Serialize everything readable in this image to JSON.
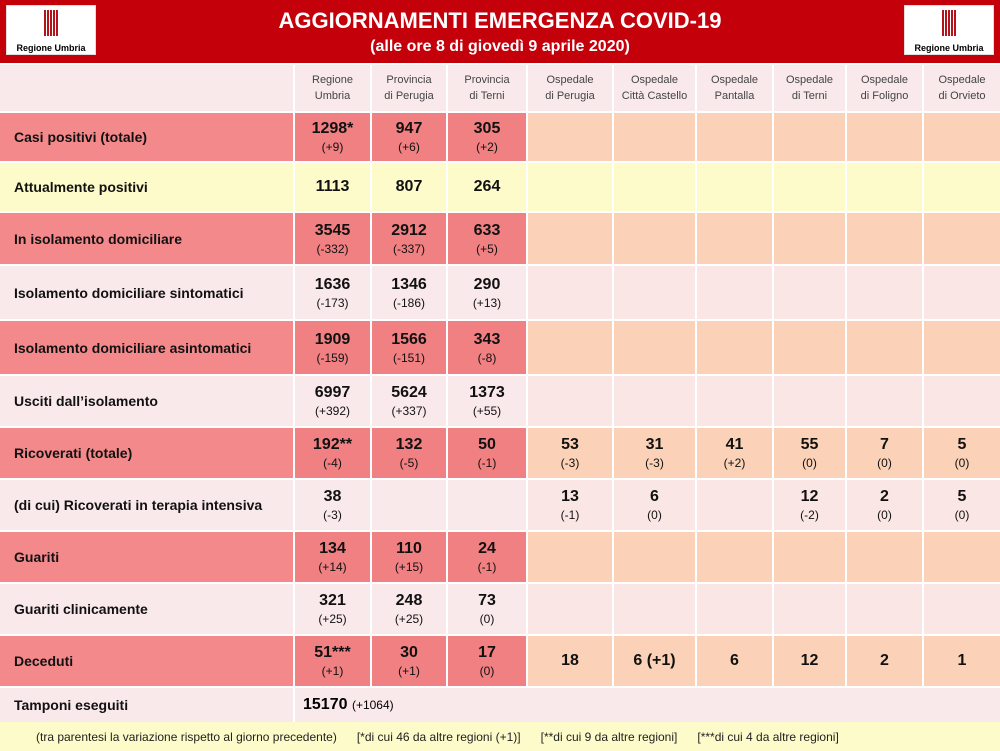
{
  "header": {
    "title": "AGGIORNAMENTI EMERGENZA COVID-19",
    "subtitle": "(alle ore 8 di giovedì 9 aprile 2020)",
    "logo_text": "Regione Umbria"
  },
  "columns": [
    [
      "Regione",
      "Umbria"
    ],
    [
      "Provincia",
      "di Perugia"
    ],
    [
      "Provincia",
      "di Terni"
    ],
    [
      "Ospedale",
      "di Perugia"
    ],
    [
      "Ospedale",
      "Città Castello"
    ],
    [
      "Ospedale",
      "Pantalla"
    ],
    [
      "Ospedale",
      "di Terni"
    ],
    [
      "Ospedale",
      "di Foligno"
    ],
    [
      "Ospedale",
      "di Orvieto"
    ]
  ],
  "rows": [
    {
      "label": "Casi positivi (totale)",
      "style": "red",
      "cells": [
        [
          "1298*",
          "(+9)"
        ],
        [
          "947",
          "(+6)"
        ],
        [
          "305",
          "(+2)"
        ],
        null,
        null,
        null,
        null,
        null,
        null
      ]
    },
    {
      "label": "Attualmente positivi",
      "style": "yel",
      "cells": [
        [
          "1113",
          ""
        ],
        [
          "807",
          ""
        ],
        [
          "264",
          ""
        ],
        null,
        null,
        null,
        null,
        null,
        null
      ]
    },
    {
      "label": "In isolamento domiciliare",
      "style": "red",
      "cells": [
        [
          "3545",
          "(-332)"
        ],
        [
          "2912",
          "(-337)"
        ],
        [
          "633",
          "(+5)"
        ],
        null,
        null,
        null,
        null,
        null,
        null
      ]
    },
    {
      "label": "Isolamento domiciliare sintomatici",
      "style": "pink",
      "cells": [
        [
          "1636",
          "(-173)"
        ],
        [
          "1346",
          "(-186)"
        ],
        [
          "290",
          "(+13)"
        ],
        null,
        null,
        null,
        null,
        null,
        null
      ]
    },
    {
      "label": "Isolamento domiciliare asintomatici",
      "style": "red",
      "cells": [
        [
          "1909",
          "(-159)"
        ],
        [
          "1566",
          "(-151)"
        ],
        [
          "343",
          "(-8)"
        ],
        null,
        null,
        null,
        null,
        null,
        null
      ]
    },
    {
      "label": "Usciti dall’isolamento",
      "style": "pink",
      "cells": [
        [
          "6997",
          "(+392)"
        ],
        [
          "5624",
          "(+337)"
        ],
        [
          "1373",
          "(+55)"
        ],
        null,
        null,
        null,
        null,
        null,
        null
      ]
    },
    {
      "label": "Ricoverati (totale)",
      "style": "red",
      "cells": [
        [
          "192**",
          "(-4)"
        ],
        [
          "132",
          "(-5)"
        ],
        [
          "50",
          "(-1)"
        ],
        [
          "53",
          "(-3)"
        ],
        [
          "31",
          "(-3)"
        ],
        [
          "41",
          "(+2)"
        ],
        [
          "55",
          "(0)"
        ],
        [
          "7",
          "(0)"
        ],
        [
          "5",
          "(0)"
        ]
      ]
    },
    {
      "label": "(di cui) Ricoverati in terapia intensiva",
      "style": "pink",
      "cells": [
        [
          "38",
          "(-3)"
        ],
        null,
        null,
        [
          "13",
          "(-1)"
        ],
        [
          "6",
          "(0)"
        ],
        null,
        [
          "12",
          "(-2)"
        ],
        [
          "2",
          "(0)"
        ],
        [
          "5",
          "(0)"
        ]
      ]
    },
    {
      "label": "Guariti",
      "style": "red",
      "cells": [
        [
          "134",
          "(+14)"
        ],
        [
          "110",
          "(+15)"
        ],
        [
          "24",
          "(-1)"
        ],
        null,
        null,
        null,
        null,
        null,
        null
      ]
    },
    {
      "label": "Guariti clinicamente",
      "style": "pink",
      "cells": [
        [
          "321",
          "(+25)"
        ],
        [
          "248",
          "(+25)"
        ],
        [
          "73",
          "(0)"
        ],
        null,
        null,
        null,
        null,
        null,
        null
      ]
    },
    {
      "label": "Deceduti",
      "style": "red",
      "cells": [
        [
          "51***",
          "(+1)"
        ],
        [
          "30",
          "(+1)"
        ],
        [
          "17",
          "(0)"
        ],
        [
          "18",
          ""
        ],
        [
          "6 (+1)",
          ""
        ],
        [
          "6",
          ""
        ],
        [
          "12",
          ""
        ],
        [
          "2",
          ""
        ],
        [
          "1",
          ""
        ]
      ]
    }
  ],
  "tamponi": {
    "label": "Tamponi eseguiti",
    "value": "15170",
    "delta": "(+1064)"
  },
  "footer": [
    "(tra parentesi la variazione rispetto al giorno precedente)",
    "[*di cui 46 da altre regioni (+1)]",
    "[**di cui 9 da altre regioni]",
    "[***di cui 4 da altre regioni]"
  ]
}
